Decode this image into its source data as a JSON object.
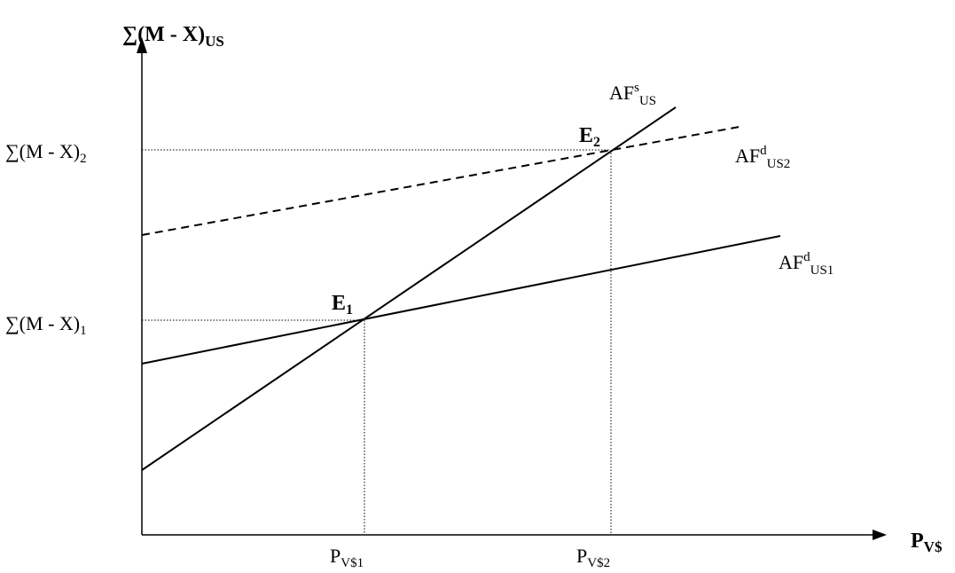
{
  "diagram": {
    "y_axis_title": {
      "main": "∑(M - X)",
      "sub": "US"
    },
    "x_axis_title": {
      "main": "P",
      "sub": "V$"
    },
    "y_ticks": [
      {
        "main": "∑(M - X)",
        "sub": "2"
      },
      {
        "main": "∑(M - X)",
        "sub": "1"
      }
    ],
    "x_ticks": [
      {
        "main": "P",
        "sub": "V$1"
      },
      {
        "main": "P",
        "sub": "V$2"
      }
    ],
    "curves": {
      "supply": {
        "main": "AF",
        "sup": "s",
        "sub": "US"
      },
      "demand2": {
        "main": "AF",
        "sup": "d",
        "sub": "US2"
      },
      "demand1": {
        "main": "AF",
        "sup": "d",
        "sub": "US1"
      }
    },
    "equilibria": [
      {
        "main": "E",
        "sub": "1"
      },
      {
        "main": "E",
        "sub": "2"
      }
    ],
    "styles": {
      "ink": "#000000",
      "demand2_line": "dashed",
      "guide_lines": "dotted"
    }
  }
}
